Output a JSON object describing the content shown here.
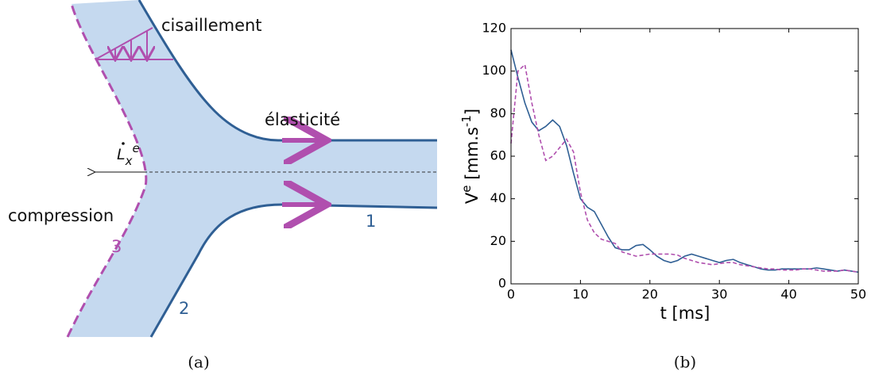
{
  "diagram": {
    "labels": {
      "shear": "cisaillement",
      "elasticity": "élasticité",
      "compression": "compression",
      "one": "1",
      "two": "2",
      "three": "3"
    },
    "velocity": {
      "base": "L",
      "sub": "x",
      "sup": "e"
    },
    "caption": "(a)"
  },
  "chart_data": {
    "type": "line",
    "caption": "(b)",
    "xlabel": "t [ms]",
    "ylabel": {
      "base": "V",
      "sup": "e",
      "unit": " [mm.s",
      "unit_sup": "-1",
      "end": "]"
    },
    "xlim": [
      0,
      50
    ],
    "ylim": [
      0,
      120
    ],
    "xticks": [
      0,
      10,
      20,
      30,
      40,
      50
    ],
    "yticks": [
      0,
      20,
      40,
      60,
      80,
      100,
      120
    ],
    "x": [
      0,
      1,
      2,
      3,
      4,
      5,
      6,
      7,
      8,
      9,
      10,
      11,
      12,
      13,
      14,
      15,
      16,
      17,
      18,
      19,
      20,
      21,
      22,
      23,
      24,
      25,
      26,
      27,
      28,
      29,
      30,
      31,
      32,
      33,
      34,
      35,
      36,
      37,
      38,
      39,
      40,
      41,
      42,
      43,
      44,
      45,
      46,
      47,
      48,
      49,
      50
    ],
    "series": [
      {
        "color": "#2f5f94",
        "dashed": false,
        "values": [
          110,
          97,
          85,
          76,
          72,
          74,
          77,
          74,
          65,
          52,
          40,
          36,
          34,
          28,
          22,
          17,
          16,
          16,
          18,
          18.5,
          16,
          13,
          11,
          10,
          11,
          13,
          14,
          13,
          12,
          11,
          10,
          11,
          11.5,
          10,
          9,
          8,
          7,
          6.5,
          6.5,
          7,
          7,
          7,
          7,
          7,
          7.5,
          7,
          6.5,
          6,
          6.5,
          6,
          5.5
        ]
      },
      {
        "color": "#b04fae",
        "dashed": true,
        "values": [
          66,
          100,
          103,
          85,
          70,
          58,
          60,
          64,
          68,
          62,
          43,
          30,
          24,
          21,
          20,
          19,
          15,
          14,
          13,
          13.5,
          14,
          14,
          14,
          14,
          13.5,
          12,
          11,
          10,
          9.5,
          9,
          9.5,
          10,
          10,
          9,
          8.5,
          8,
          7.5,
          7,
          7,
          6.5,
          6.5,
          6.5,
          7,
          7,
          6.5,
          6,
          6,
          6,
          6.5,
          6,
          5.5
        ]
      }
    ]
  }
}
